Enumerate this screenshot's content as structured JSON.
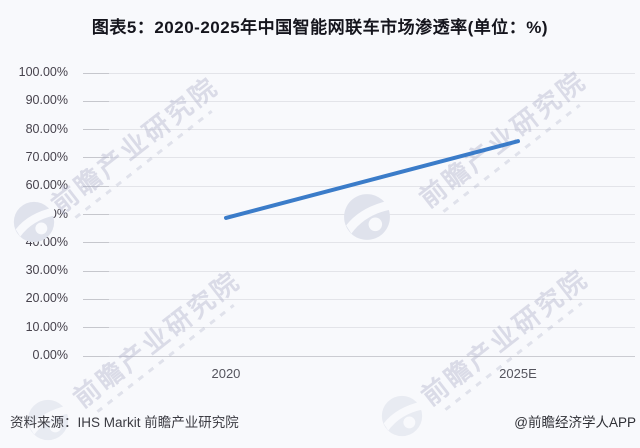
{
  "title": "图表5：2020-2025年中国智能网联车市场渗透率(单位：%)",
  "chart_data": {
    "type": "line",
    "title": "图表5：2020-2025年中国智能网联车市场渗透率(单位：%)",
    "unit": "%",
    "categories": [
      "2020",
      "2025E"
    ],
    "values": [
      48.8,
      75.9
    ],
    "ylim": [
      0,
      100
    ],
    "ytick_labels": [
      "0.00%",
      "10.00%",
      "20.00%",
      "30.00%",
      "40.00%",
      "50.00%",
      "60.00%",
      "70.00%",
      "80.00%",
      "90.00%",
      "100.00%"
    ],
    "grid": true,
    "legend": "none",
    "line_color": "#3b7cc9"
  },
  "footer": {
    "source": "资料来源：IHS Markit 前瞻产业研究院",
    "credit": "@前瞻经济学人APP"
  },
  "watermark": {
    "text": "前瞻产业研究院",
    "logo_name": "forward-globe-logo"
  },
  "colors": {
    "background": "#f8f9fc",
    "grid": "#e3e4e9",
    "axis": "#cbccd2",
    "line": "#3b7cc9",
    "title_text": "#15151d",
    "watermark": "rgba(168,172,196,0.38)"
  }
}
